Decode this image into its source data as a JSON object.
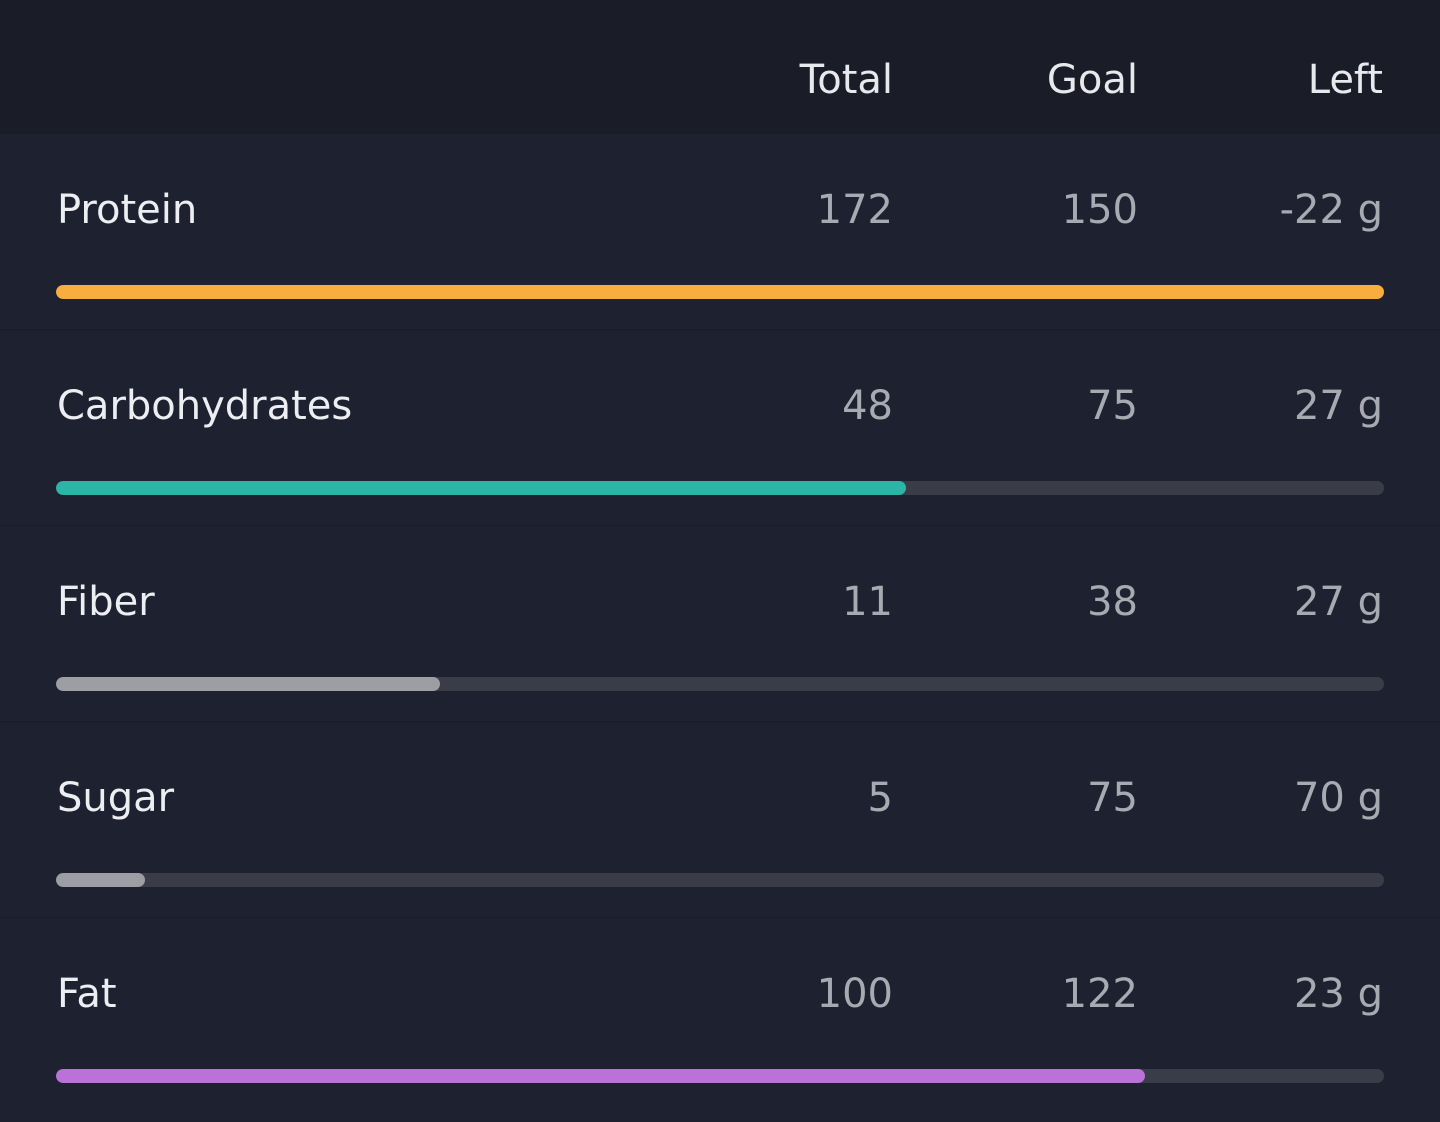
{
  "header": {
    "columns": [
      "Total",
      "Goal",
      "Left"
    ]
  },
  "rows": [
    {
      "name": "Protein",
      "total": 172,
      "goal": 150,
      "left": "-22 g",
      "color": "#f8ad3e"
    },
    {
      "name": "Carbohydrates",
      "total": 48,
      "goal": 75,
      "left": "27 g",
      "color": "#2bb5a6"
    },
    {
      "name": "Fiber",
      "total": 11,
      "goal": 38,
      "left": "27 g",
      "color": "#9c9ea4"
    },
    {
      "name": "Sugar",
      "total": 5,
      "goal": 75,
      "left": "70 g",
      "color": "#9c9ea4"
    },
    {
      "name": "Fat",
      "total": 100,
      "goal": 122,
      "left": "23 g",
      "color": "#bb72d8"
    }
  ]
}
